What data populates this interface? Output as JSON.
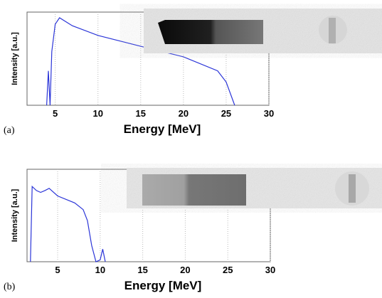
{
  "chart_data": [
    {
      "type": "line",
      "panel_label": "(a)",
      "ylabel": "Intensity [a.u.]",
      "xlabel": "Energy [MeV]",
      "log_y": true,
      "grid": true,
      "xlim": [
        1.7,
        30
      ],
      "xticks": [
        5,
        10,
        15,
        20,
        25,
        30
      ],
      "ylim": [
        1,
        10000
      ],
      "series": [
        {
          "color": "#2b35d8",
          "x": [
            4.0,
            4.2,
            4.4,
            4.6,
            5.0,
            5.5,
            7,
            10,
            15,
            20,
            24,
            25,
            26
          ],
          "values": [
            1,
            30,
            1,
            200,
            3000,
            5700,
            2600,
            1000,
            340,
            120,
            30,
            10,
            1
          ]
        }
      ]
    },
    {
      "type": "line",
      "panel_label": "(b)",
      "ylabel": "Intensity [a.u.]",
      "xlabel": "Energy [MeV]",
      "log_y": true,
      "grid": true,
      "xlim": [
        1.4,
        30
      ],
      "xticks": [
        5,
        10,
        15,
        20,
        25,
        30
      ],
      "ylim": [
        1,
        10000
      ],
      "series": [
        {
          "color": "#2b35d8",
          "x": [
            1.8,
            2.0,
            2.5,
            3.0,
            3.5,
            4.0,
            5,
            7,
            8,
            8.5,
            9,
            9.5,
            10,
            10.3,
            10.6
          ],
          "values": [
            1,
            1800,
            1200,
            1000,
            1200,
            1500,
            700,
            350,
            180,
            60,
            5,
            1,
            1.2,
            3.5,
            1
          ]
        }
      ]
    }
  ]
}
